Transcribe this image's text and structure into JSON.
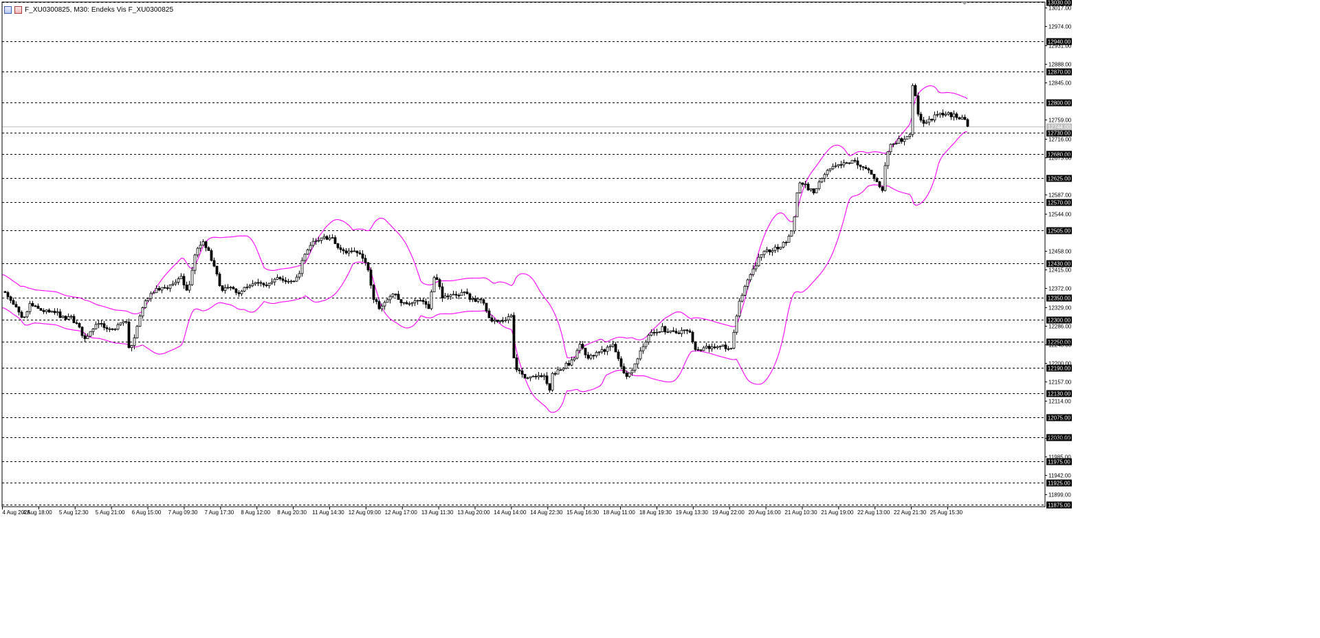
{
  "window": {
    "title": "F_XU0300825, M30:  Endeks Vis F_XU0300825"
  },
  "colors": {
    "background": "#ffffff",
    "candle": "#000000",
    "band": "#ff00ff",
    "grid_line": "#000000",
    "axis": "#000000",
    "current_price_line": "#c0c0c0"
  },
  "chart_data": {
    "type": "candlestick",
    "symbol": "F_XU0300825",
    "timeframe": "M30",
    "indicator": "Bollinger Bands",
    "ylim": [
      11870,
      13030
    ],
    "y_ticks": [
      "13017.00",
      "12974.00",
      "12931.00",
      "12888.00",
      "12845.00",
      "12759.00",
      "12716.00",
      "12673.00",
      "12587.00",
      "12544.00",
      "12458.00",
      "12415.00",
      "12372.00",
      "12329.00",
      "12286.00",
      "12243.00",
      "12200.00",
      "12157.00",
      "12114.00",
      "12028.00",
      "11985.00",
      "11942.00",
      "11899.00"
    ],
    "y_tick_values": [
      13017,
      12974,
      12931,
      12888,
      12845,
      12759,
      12716,
      12673,
      12587,
      12544,
      12458,
      12415,
      12372,
      12329,
      12286,
      12243,
      12200,
      12157,
      12114,
      12028,
      11985,
      11942,
      11899
    ],
    "levels": [
      "13030.00",
      "12940.00",
      "12870.00",
      "12800.00",
      "12730.00",
      "12680.00",
      "12625.00",
      "12570.00",
      "12505.00",
      "12430.00",
      "12350.00",
      "12300.00",
      "12250.00",
      "12190.00",
      "12130.00",
      "12075.00",
      "12030.00",
      "11975.00",
      "11925.00",
      "11875.00"
    ],
    "level_values": [
      13030,
      12940,
      12870,
      12800,
      12730,
      12680,
      12625,
      12570,
      12505,
      12430,
      12350,
      12300,
      12250,
      12190,
      12130,
      12075,
      12030,
      11975,
      11925,
      11875
    ],
    "current_price": "12744.00",
    "current_price_value": 12744,
    "x_labels": [
      "4 Aug 2025",
      "4 Aug 18:00",
      "5 Aug 12:30",
      "5 Aug 21:00",
      "6 Aug 15:00",
      "7 Aug 09:30",
      "7 Aug 17:30",
      "8 Aug 12:00",
      "8 Aug 20:30",
      "11 Aug 14:30",
      "12 Aug 09:00",
      "12 Aug 17:00",
      "13 Aug 11:30",
      "13 Aug 20:00",
      "14 Aug 14:00",
      "14 Aug 22:30",
      "15 Aug 16:30",
      "18 Aug 11:00",
      "18 Aug 19:30",
      "19 Aug 13:30",
      "19 Aug 22:00",
      "20 Aug 16:00",
      "21 Aug 10:30",
      "21 Aug 19:00",
      "22 Aug 13:00",
      "22 Aug 21:30",
      "25 Aug 15:30"
    ],
    "close_path": [
      [
        0,
        12370
      ],
      [
        10,
        12345
      ],
      [
        20,
        12325
      ],
      [
        30,
        12295
      ],
      [
        40,
        12335
      ],
      [
        50,
        12325
      ],
      [
        60,
        12320
      ],
      [
        70,
        12315
      ],
      [
        80,
        12315
      ],
      [
        90,
        12300
      ],
      [
        100,
        12305
      ],
      [
        110,
        12285
      ],
      [
        120,
        12255
      ],
      [
        130,
        12280
      ],
      [
        140,
        12295
      ],
      [
        150,
        12275
      ],
      [
        160,
        12275
      ],
      [
        170,
        12290
      ],
      [
        180,
        12295
      ],
      [
        185,
        12220
      ],
      [
        190,
        12250
      ],
      [
        200,
        12305
      ],
      [
        210,
        12350
      ],
      [
        220,
        12365
      ],
      [
        230,
        12370
      ],
      [
        240,
        12375
      ],
      [
        250,
        12385
      ],
      [
        260,
        12395
      ],
      [
        270,
        12360
      ],
      [
        280,
        12450
      ],
      [
        290,
        12480
      ],
      [
        300,
        12455
      ],
      [
        310,
        12410
      ],
      [
        320,
        12365
      ],
      [
        330,
        12375
      ],
      [
        340,
        12360
      ],
      [
        350,
        12370
      ],
      [
        360,
        12375
      ],
      [
        370,
        12385
      ],
      [
        380,
        12375
      ],
      [
        390,
        12390
      ],
      [
        400,
        12395
      ],
      [
        410,
        12385
      ],
      [
        420,
        12390
      ],
      [
        430,
        12395
      ],
      [
        440,
        12455
      ],
      [
        450,
        12475
      ],
      [
        460,
        12480
      ],
      [
        470,
        12490
      ],
      [
        480,
        12485
      ],
      [
        490,
        12460
      ],
      [
        500,
        12455
      ],
      [
        510,
        12460
      ],
      [
        520,
        12455
      ],
      [
        530,
        12430
      ],
      [
        540,
        12345
      ],
      [
        550,
        12325
      ],
      [
        560,
        12345
      ],
      [
        570,
        12360
      ],
      [
        580,
        12335
      ],
      [
        590,
        12340
      ],
      [
        600,
        12345
      ],
      [
        610,
        12345
      ],
      [
        620,
        12330
      ],
      [
        630,
        12410
      ],
      [
        640,
        12345
      ],
      [
        650,
        12360
      ],
      [
        660,
        12355
      ],
      [
        670,
        12365
      ],
      [
        680,
        12350
      ],
      [
        690,
        12345
      ],
      [
        700,
        12340
      ],
      [
        710,
        12300
      ],
      [
        720,
        12295
      ],
      [
        730,
        12300
      ],
      [
        740,
        12310
      ],
      [
        745,
        12185
      ],
      [
        750,
        12180
      ],
      [
        760,
        12170
      ],
      [
        770,
        12170
      ],
      [
        780,
        12175
      ],
      [
        790,
        12165
      ],
      [
        795,
        12130
      ],
      [
        800,
        12175
      ],
      [
        810,
        12185
      ],
      [
        820,
        12195
      ],
      [
        830,
        12205
      ],
      [
        840,
        12240
      ],
      [
        850,
        12215
      ],
      [
        860,
        12220
      ],
      [
        870,
        12225
      ],
      [
        880,
        12235
      ],
      [
        890,
        12240
      ],
      [
        900,
        12190
      ],
      [
        910,
        12170
      ],
      [
        920,
        12200
      ],
      [
        930,
        12230
      ],
      [
        940,
        12265
      ],
      [
        950,
        12270
      ],
      [
        960,
        12280
      ],
      [
        970,
        12270
      ],
      [
        980,
        12270
      ],
      [
        990,
        12275
      ],
      [
        1000,
        12270
      ],
      [
        1010,
        12225
      ],
      [
        1020,
        12240
      ],
      [
        1030,
        12235
      ],
      [
        1040,
        12240
      ],
      [
        1050,
        12240
      ],
      [
        1060,
        12230
      ],
      [
        1070,
        12330
      ],
      [
        1080,
        12380
      ],
      [
        1090,
        12410
      ],
      [
        1100,
        12440
      ],
      [
        1110,
        12455
      ],
      [
        1120,
        12460
      ],
      [
        1130,
        12465
      ],
      [
        1140,
        12480
      ],
      [
        1150,
        12510
      ],
      [
        1155,
        12585
      ],
      [
        1160,
        12615
      ],
      [
        1170,
        12605
      ],
      [
        1180,
        12590
      ],
      [
        1190,
        12620
      ],
      [
        1200,
        12640
      ],
      [
        1210,
        12650
      ],
      [
        1220,
        12655
      ],
      [
        1230,
        12660
      ],
      [
        1240,
        12665
      ],
      [
        1250,
        12650
      ],
      [
        1260,
        12640
      ],
      [
        1270,
        12620
      ],
      [
        1280,
        12600
      ],
      [
        1285,
        12665
      ],
      [
        1290,
        12700
      ],
      [
        1300,
        12710
      ],
      [
        1310,
        12715
      ],
      [
        1320,
        12730
      ],
      [
        1325,
        12860
      ],
      [
        1330,
        12780
      ],
      [
        1340,
        12750
      ],
      [
        1350,
        12760
      ],
      [
        1360,
        12770
      ],
      [
        1370,
        12775
      ],
      [
        1380,
        12770
      ],
      [
        1390,
        12765
      ],
      [
        1400,
        12760
      ],
      [
        1405,
        12744
      ]
    ]
  }
}
